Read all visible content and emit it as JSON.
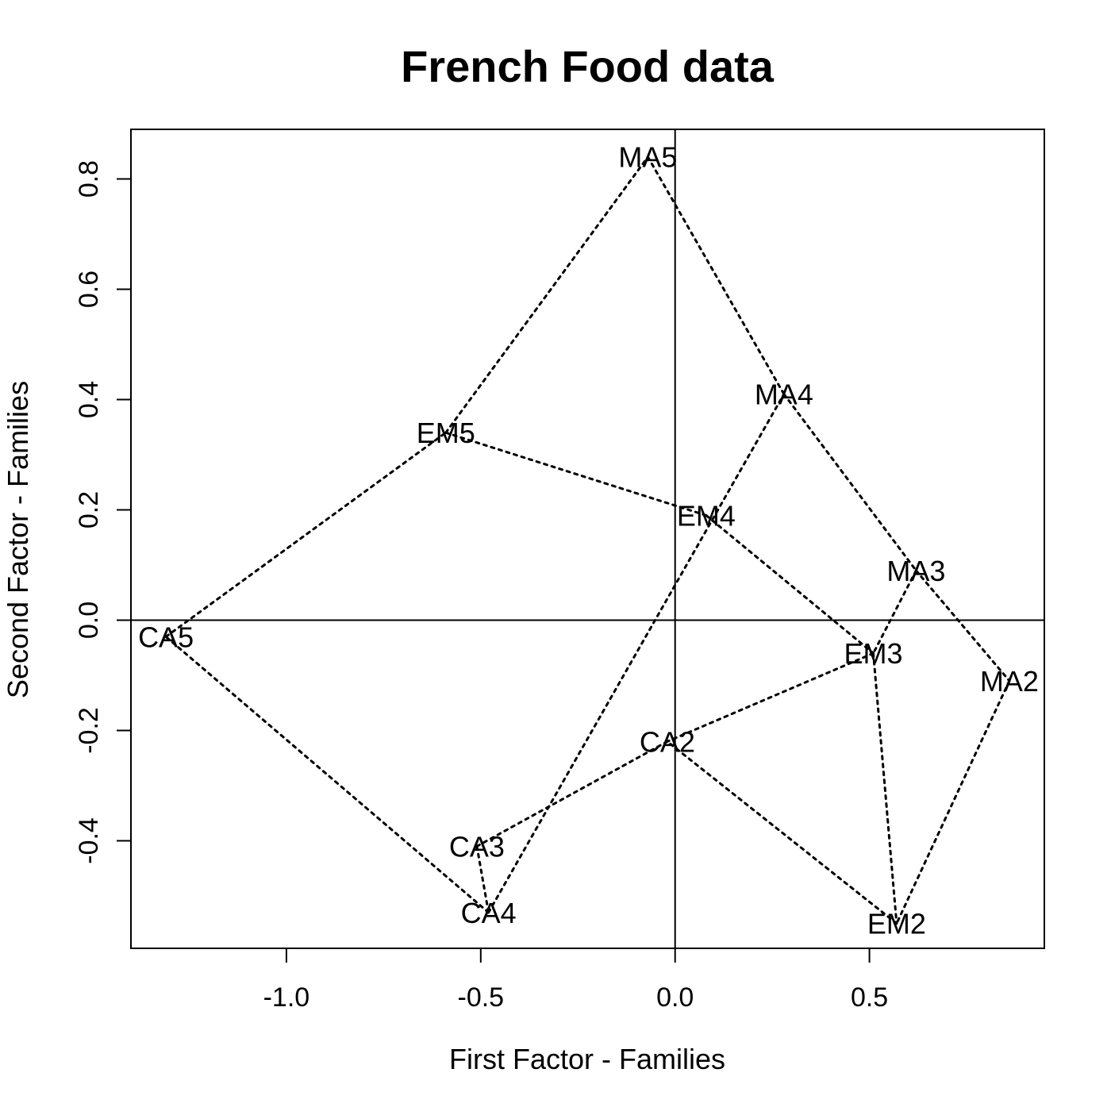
{
  "chart_data": {
    "type": "scatter",
    "title": "French Food data",
    "xlabel": "First Factor - Families",
    "ylabel": "Second Factor - Families",
    "xlim": [
      -1.4,
      0.95
    ],
    "ylim": [
      -0.595,
      0.89
    ],
    "xticks": [
      -1.0,
      -0.5,
      0.0,
      0.5
    ],
    "xtick_labels": [
      "-1.0",
      "-0.5",
      "0.0",
      "0.5"
    ],
    "yticks": [
      -0.4,
      -0.2,
      0.0,
      0.2,
      0.4,
      0.6,
      0.8
    ],
    "ytick_labels": [
      "-0.4",
      "-0.2",
      "0.0",
      "0.2",
      "0.4",
      "0.6",
      "0.8"
    ],
    "reference_lines": {
      "x": 0.0,
      "y": 0.0
    },
    "grid": false,
    "points": [
      {
        "label": "CA2",
        "x": -0.02,
        "y": -0.22
      },
      {
        "label": "CA3",
        "x": -0.51,
        "y": -0.41
      },
      {
        "label": "CA4",
        "x": -0.48,
        "y": -0.53
      },
      {
        "label": "CA5",
        "x": -1.31,
        "y": -0.03
      },
      {
        "label": "EM2",
        "x": 0.57,
        "y": -0.55
      },
      {
        "label": "EM3",
        "x": 0.51,
        "y": -0.06
      },
      {
        "label": "EM4",
        "x": 0.08,
        "y": 0.19
      },
      {
        "label": "EM5",
        "x": -0.59,
        "y": 0.34
      },
      {
        "label": "MA2",
        "x": 0.86,
        "y": -0.11
      },
      {
        "label": "MA3",
        "x": 0.62,
        "y": 0.09
      },
      {
        "label": "MA4",
        "x": 0.28,
        "y": 0.41
      },
      {
        "label": "MA5",
        "x": -0.07,
        "y": 0.84
      }
    ],
    "segments": [
      [
        "CA5",
        "EM5"
      ],
      [
        "EM5",
        "MA5"
      ],
      [
        "MA5",
        "MA4"
      ],
      [
        "MA4",
        "MA3"
      ],
      [
        "MA3",
        "MA2"
      ],
      [
        "MA2",
        "EM2"
      ],
      [
        "EM2",
        "CA2"
      ],
      [
        "CA2",
        "CA3"
      ],
      [
        "CA3",
        "CA4"
      ],
      [
        "CA4",
        "CA5"
      ],
      [
        "EM5",
        "EM4"
      ],
      [
        "EM4",
        "EM3"
      ],
      [
        "EM3",
        "CA2"
      ],
      [
        "CA4",
        "MA4"
      ],
      [
        "MA3",
        "EM3"
      ],
      [
        "EM3",
        "EM2"
      ]
    ],
    "line_style": "dotted",
    "colors": {
      "line": "#000000",
      "text": "#000000",
      "background": "#ffffff"
    }
  }
}
